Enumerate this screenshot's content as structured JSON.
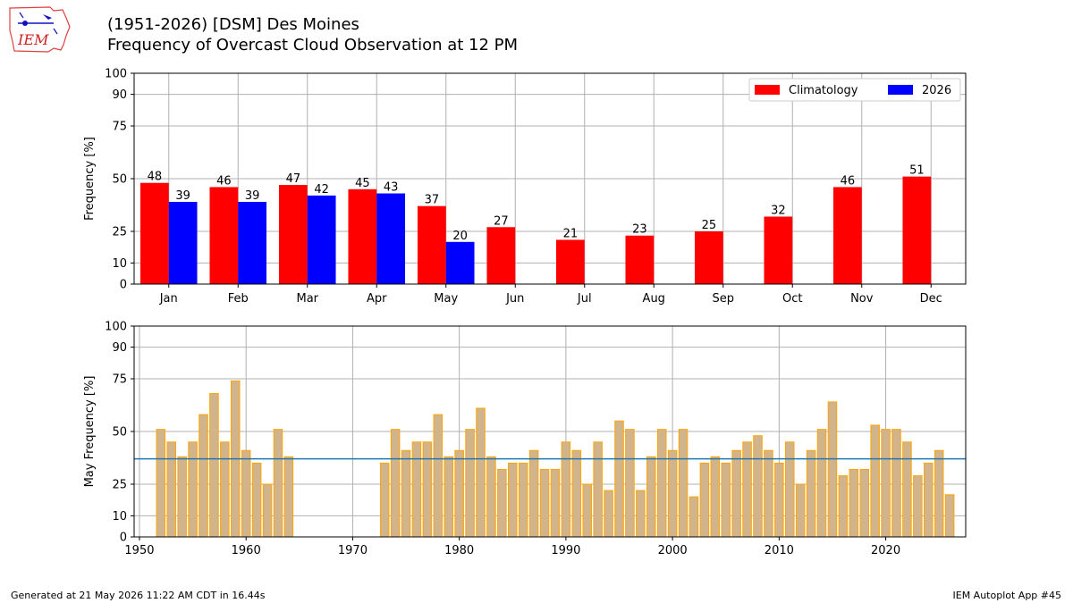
{
  "header": {
    "title_line1": "(1951-2026) [DSM] Des Moines",
    "title_line2": "Frequency of Overcast Cloud Observation at 12 PM",
    "logo_text": "IEM"
  },
  "footer": {
    "generated": "Generated at 21 May 2026 11:22 AM CDT in 16.44s",
    "app": "IEM Autoplot App #45"
  },
  "colors": {
    "climatology": "#ff0000",
    "current_year": "#0000ff",
    "yearly_fill": "#d2b48c",
    "yearly_edge": "#ffa500",
    "average_line": "#1f77b4",
    "grid": "#b0b0b0"
  },
  "chart_data": [
    {
      "type": "bar",
      "title": "",
      "xlabel": "",
      "ylabel": "Frequency [%]",
      "ylim": [
        0,
        100
      ],
      "yticks": [
        0,
        10,
        25,
        50,
        75,
        90,
        100
      ],
      "grid": true,
      "legend_position": "top-right",
      "categories": [
        "Jan",
        "Feb",
        "Mar",
        "Apr",
        "May",
        "Jun",
        "Jul",
        "Aug",
        "Sep",
        "Oct",
        "Nov",
        "Dec"
      ],
      "series": [
        {
          "name": "Climatology",
          "color": "#ff0000",
          "values": [
            48,
            46,
            47,
            45,
            37,
            27,
            21,
            23,
            25,
            32,
            46,
            51
          ]
        },
        {
          "name": "2026",
          "color": "#0000ff",
          "values": [
            39,
            39,
            42,
            43,
            20,
            null,
            null,
            null,
            null,
            null,
            null,
            null
          ]
        }
      ]
    },
    {
      "type": "bar",
      "title": "",
      "xlabel": "",
      "ylabel": "May Frequency [%]",
      "ylim": [
        0,
        100
      ],
      "yticks": [
        0,
        10,
        25,
        50,
        75,
        90,
        100
      ],
      "xlim": [
        1949.5,
        2027.5
      ],
      "xticks": [
        1950,
        1960,
        1970,
        1980,
        1990,
        2000,
        2010,
        2020
      ],
      "grid": true,
      "average": 37,
      "x": [
        1952,
        1953,
        1954,
        1955,
        1956,
        1957,
        1958,
        1959,
        1960,
        1961,
        1962,
        1963,
        1964,
        1973,
        1974,
        1975,
        1976,
        1977,
        1978,
        1979,
        1980,
        1981,
        1982,
        1983,
        1984,
        1985,
        1986,
        1987,
        1988,
        1989,
        1990,
        1991,
        1992,
        1993,
        1994,
        1995,
        1996,
        1997,
        1998,
        1999,
        2000,
        2001,
        2002,
        2003,
        2004,
        2005,
        2006,
        2007,
        2008,
        2009,
        2010,
        2011,
        2012,
        2013,
        2014,
        2015,
        2016,
        2017,
        2018,
        2019,
        2020,
        2021,
        2022,
        2023,
        2024,
        2025,
        2026
      ],
      "values": [
        51,
        45,
        38,
        45,
        58,
        68,
        45,
        74,
        41,
        35,
        25,
        51,
        38,
        35,
        51,
        41,
        45,
        45,
        58,
        38,
        41,
        51,
        61,
        38,
        32,
        35,
        35,
        41,
        32,
        32,
        45,
        41,
        25,
        45,
        22,
        55,
        51,
        22,
        38,
        51,
        41,
        51,
        19,
        35,
        38,
        35,
        41,
        45,
        48,
        41,
        35,
        45,
        25,
        41,
        51,
        64,
        29,
        32,
        32,
        53,
        51,
        51,
        45,
        29,
        35,
        41,
        20
      ]
    }
  ]
}
